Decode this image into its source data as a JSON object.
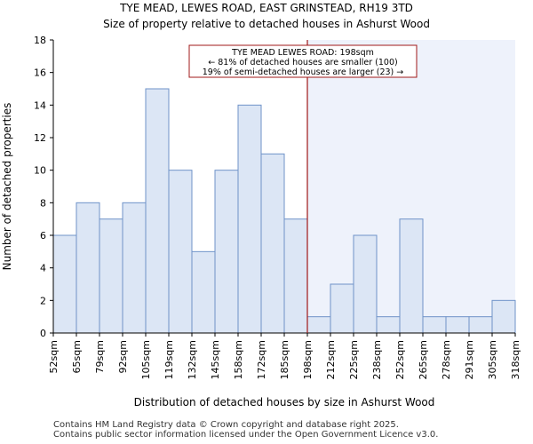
{
  "chart_data": {
    "type": "bar",
    "title": "TYE MEAD, LEWES ROAD, EAST GRINSTEAD, RH19 3TD",
    "subtitle": "Size of property relative to detached houses in Ashurst Wood",
    "xlabel": "Distribution of detached houses by size in Ashurst Wood",
    "ylabel": "Number of detached properties",
    "ylim": [
      0,
      18
    ],
    "yticks": [
      0,
      2,
      4,
      6,
      8,
      10,
      12,
      14,
      16,
      18
    ],
    "bin_edges": [
      52,
      65,
      79,
      92,
      105,
      119,
      132,
      145,
      158,
      172,
      185,
      198,
      212,
      225,
      238,
      252,
      265,
      278,
      291,
      305,
      318
    ],
    "tick_labels": [
      "52sqm",
      "65sqm",
      "79sqm",
      "92sqm",
      "105sqm",
      "119sqm",
      "132sqm",
      "145sqm",
      "158sqm",
      "172sqm",
      "185sqm",
      "198sqm",
      "212sqm",
      "225sqm",
      "238sqm",
      "252sqm",
      "265sqm",
      "278sqm",
      "291sqm",
      "305sqm",
      "318sqm"
    ],
    "values": [
      6,
      8,
      7,
      8,
      15,
      10,
      5,
      10,
      14,
      11,
      7,
      1,
      3,
      6,
      1,
      7,
      1,
      1,
      1,
      2
    ],
    "marker_value": 198,
    "annotation": [
      "TYE MEAD LEWES ROAD: 198sqm",
      "← 81% of detached houses are smaller (100)",
      "19% of semi-detached houses are larger (23) →"
    ],
    "colors": {
      "bar_fill": "#dce6f5",
      "bar_stroke": "#6f93c8",
      "marker": "#a01818",
      "highlight_fill": "#eef2fb"
    }
  },
  "footer": {
    "line1": "Contains HM Land Registry data © Crown copyright and database right 2025.",
    "line2": "Contains public sector information licensed under the Open Government Licence v3.0."
  }
}
